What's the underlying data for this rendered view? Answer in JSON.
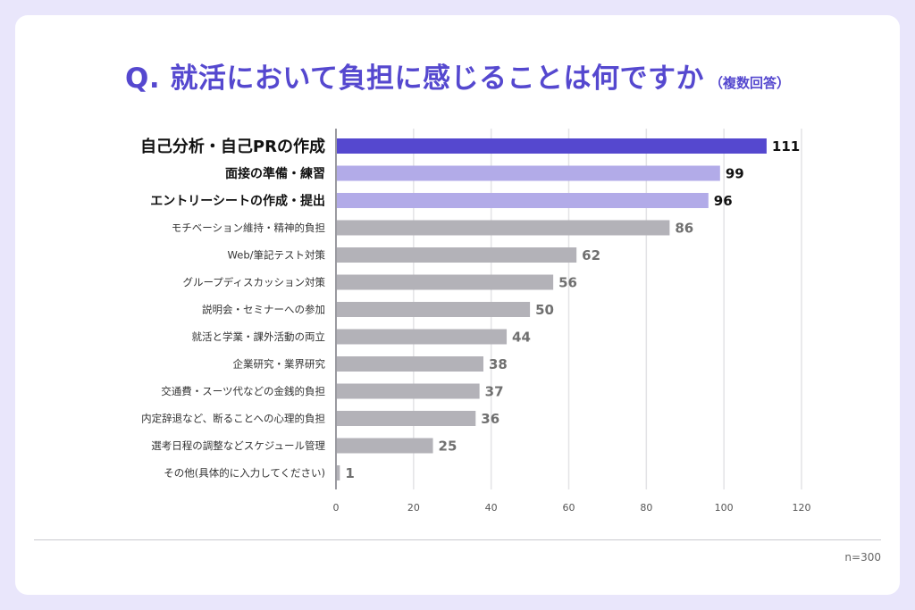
{
  "title": "Q. 就活において負担に感じることは何ですか",
  "title_note": "（複数回答）",
  "sample_note": "n=300",
  "colors": {
    "background": "#e9e6fb",
    "title": "#5548cf",
    "top1": "#5548cf",
    "top3": "#b2abe8",
    "other": "#b3b2b8",
    "grid": "#e3e3e6"
  },
  "chart_data": {
    "type": "bar",
    "orientation": "horizontal",
    "categories": [
      "自己分析・自己PRの作成",
      "面接の準備・練習",
      "エントリーシートの作成・提出",
      "モチベーション維持・精神的負担",
      "Web/筆記テスト対策",
      "グループディスカッション対策",
      "説明会・セミナーへの参加",
      "就活と学業・課外活動の両立",
      "企業研究・業界研究",
      "交通費・スーツ代などの金銭的負担",
      "内定辞退など、断ることへの心理的負担",
      "選考日程の調整などスケジュール管理",
      "その他(具体的に入力してください)"
    ],
    "values": [
      111,
      99,
      96,
      86,
      62,
      56,
      50,
      44,
      38,
      37,
      36,
      25,
      1
    ],
    "xlim": [
      0,
      120
    ],
    "xticks": [
      0,
      20,
      40,
      60,
      80,
      100,
      120
    ],
    "grid": true,
    "legend": false
  }
}
